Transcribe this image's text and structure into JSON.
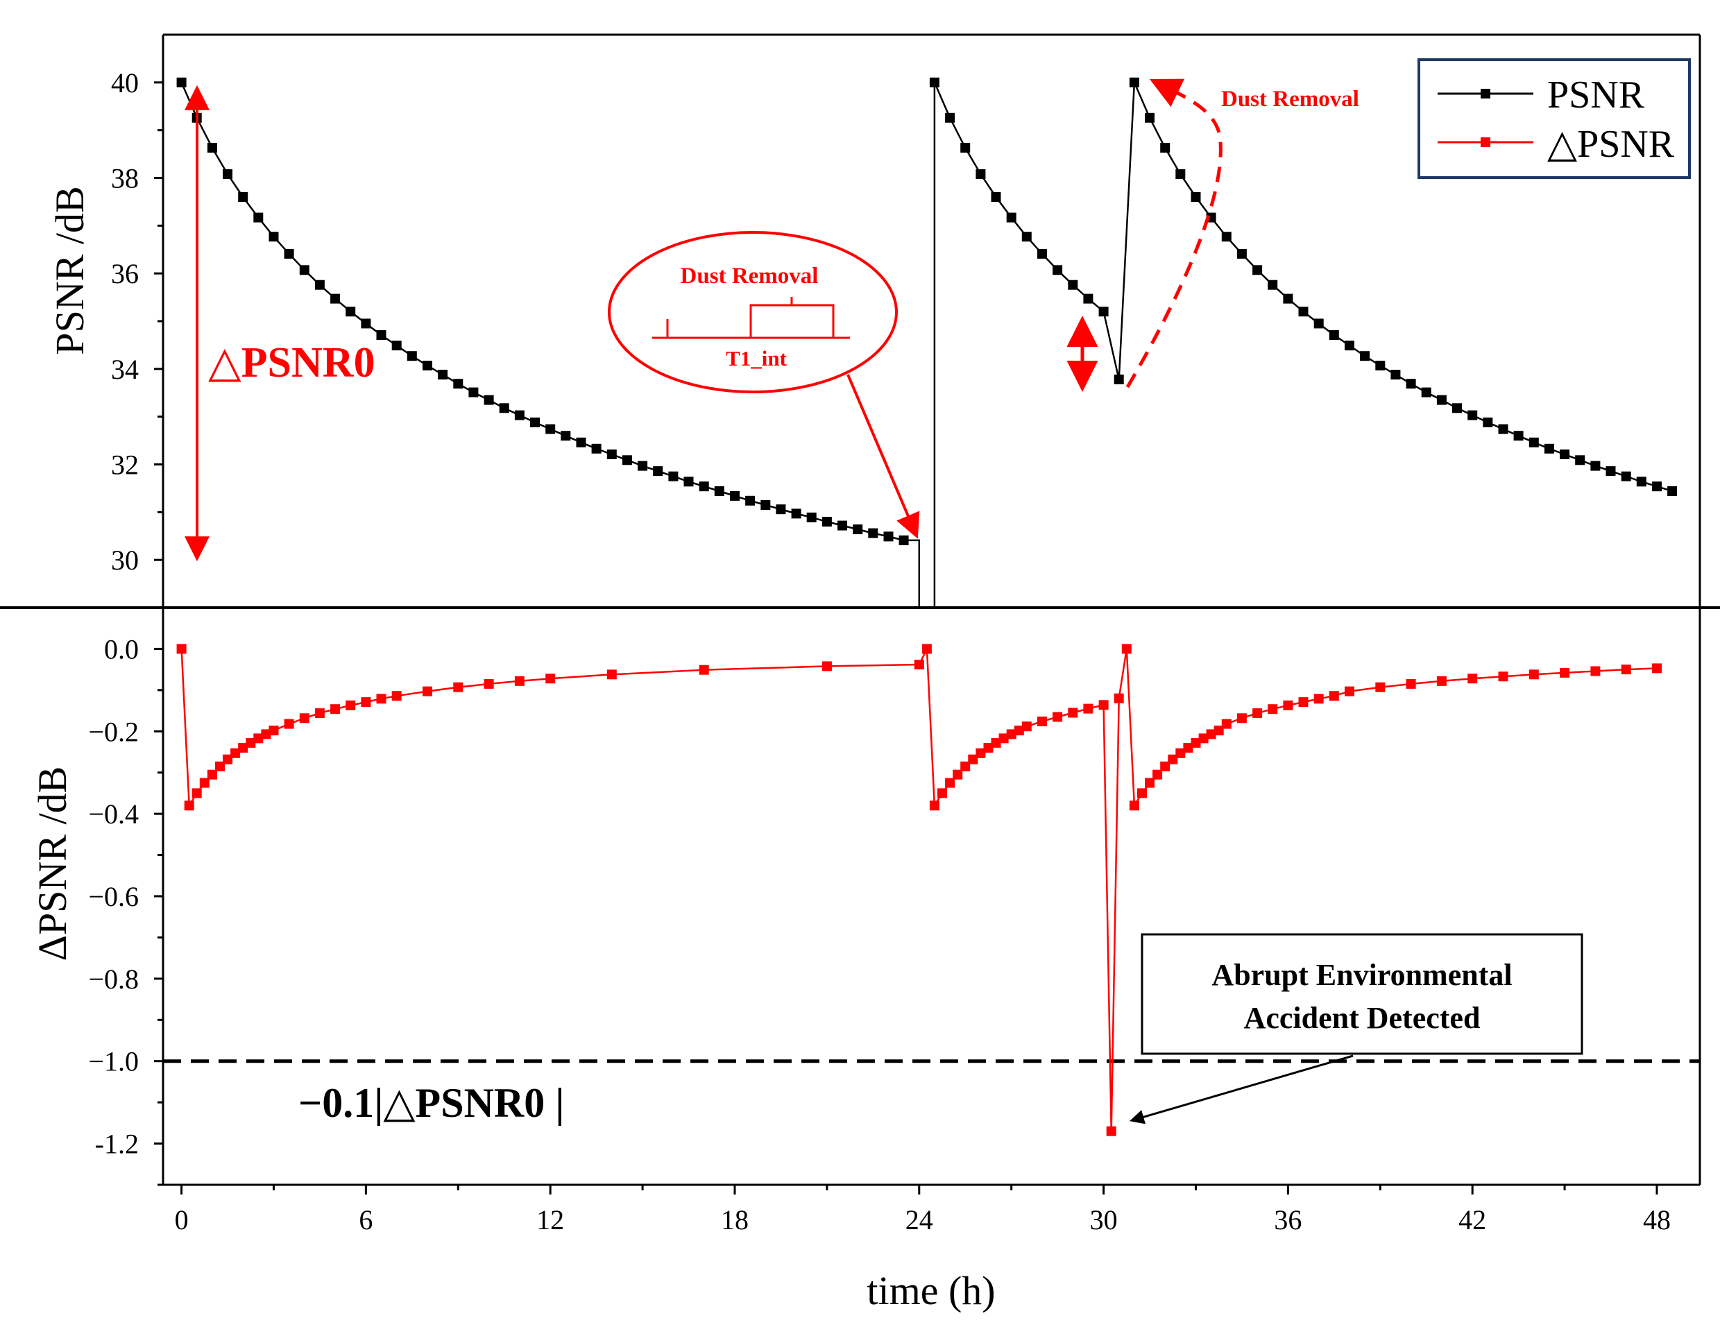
{
  "colors": {
    "psnr": "#000000",
    "dpsnr": "#ff0000",
    "annotation": "#ff0000",
    "legend_border": "#1f3864"
  },
  "chart_data": [
    {
      "type": "line",
      "panel": "top",
      "ylabel": "PSNR /dB",
      "ylim": [
        29,
        41
      ],
      "yticks": [
        30,
        32,
        34,
        36,
        38,
        40
      ],
      "ytick_labels": [
        "30",
        "32",
        "34",
        "36",
        "38",
        "40"
      ],
      "legend": [
        "PSNR",
        "△PSNR"
      ],
      "legend_position": "top-right",
      "series": [
        {
          "name": "PSNR",
          "x": [
            0,
            0.5,
            1,
            1.5,
            2,
            2.5,
            3,
            3.5,
            4,
            4.5,
            5,
            5.5,
            6,
            6.5,
            7,
            7.5,
            8,
            8.5,
            9,
            9.5,
            10,
            10.5,
            11,
            11.5,
            12,
            12.5,
            13,
            13.5,
            14,
            14.5,
            15,
            15.5,
            16,
            16.5,
            17,
            17.5,
            18,
            18.5,
            19,
            19.5,
            20,
            20.5,
            21,
            21.5,
            22,
            22.5,
            23,
            23.5,
            24.5,
            25,
            25.5,
            26,
            26.5,
            27,
            27.5,
            28,
            28.5,
            29,
            29.5,
            30,
            30.5,
            31,
            31.5,
            32,
            32.5,
            33,
            33.5,
            34,
            34.5,
            35,
            35.5,
            36,
            36.5,
            37,
            37.5,
            38,
            38.5,
            39,
            39.5,
            40,
            40.5,
            41,
            41.5,
            42,
            42.5,
            43,
            43.5,
            44,
            44.5,
            45,
            45.5,
            46,
            46.5,
            47,
            47.5,
            48,
            48.5
          ],
          "y": [
            40,
            39.26,
            38.63,
            38.08,
            37.6,
            37.17,
            36.77,
            36.41,
            36.07,
            35.76,
            35.47,
            35.2,
            34.95,
            34.71,
            34.49,
            34.27,
            34.07,
            33.88,
            33.69,
            33.51,
            33.35,
            33.18,
            33.03,
            32.88,
            32.74,
            32.6,
            32.46,
            32.33,
            32.21,
            32.09,
            31.97,
            31.86,
            31.75,
            31.64,
            31.54,
            31.44,
            31.34,
            31.24,
            31.15,
            31.06,
            30.97,
            30.89,
            30.8,
            30.72,
            30.64,
            30.56,
            30.49,
            30.41,
            40,
            39.26,
            38.63,
            38.08,
            37.6,
            37.17,
            36.77,
            36.41,
            36.07,
            35.76,
            35.47,
            35.2,
            33.78,
            40,
            39.26,
            38.63,
            38.08,
            37.6,
            37.17,
            36.77,
            36.41,
            36.07,
            35.76,
            35.47,
            35.2,
            34.95,
            34.71,
            34.49,
            34.27,
            34.07,
            33.88,
            33.69,
            33.51,
            33.35,
            33.18,
            33.03,
            32.88,
            32.74,
            32.6,
            32.46,
            32.33,
            32.21,
            32.09,
            31.97,
            31.86,
            31.75,
            31.64,
            31.54,
            31.44
          ]
        }
      ],
      "annotations": {
        "delta_label": "△PSNR0",
        "dust_removal_label": "Dust Removal",
        "inset_label_top": "Dust Removal",
        "inset_label_bottom": "T1_int"
      }
    },
    {
      "type": "line",
      "panel": "bottom",
      "ylabel": "ΔPSNR /dB",
      "xlabel": "time (h)",
      "ylim": [
        -1.3,
        0.1
      ],
      "xlim": [
        -0.6,
        49.4
      ],
      "yticks": [
        0,
        -0.2,
        -0.4,
        -0.6,
        -0.8,
        -1.0,
        -1.2
      ],
      "ytick_labels": [
        "0.0",
        "−0.2",
        "−0.4",
        "−0.6",
        "−0.8",
        "−1.0",
        "-1.2"
      ],
      "xticks": [
        0,
        6,
        12,
        18,
        24,
        30,
        36,
        42,
        48
      ],
      "xtick_labels": [
        "0",
        "6",
        "12",
        "18",
        "24",
        "30",
        "36",
        "42",
        "48"
      ],
      "threshold": -1.0,
      "series": [
        {
          "name": "△PSNR",
          "x": [
            0,
            0.25,
            0.5,
            0.75,
            1,
            1.25,
            1.5,
            1.75,
            2,
            2.25,
            2.5,
            2.75,
            3,
            3.5,
            4,
            4.5,
            5,
            5.5,
            6,
            6.5,
            7,
            8,
            9,
            10,
            11,
            12,
            14,
            17,
            21,
            24,
            24.25,
            24.5,
            24.75,
            25,
            25.25,
            25.5,
            25.75,
            26,
            26.25,
            26.5,
            26.75,
            27,
            27.25,
            27.5,
            28,
            28.5,
            29,
            29.5,
            30,
            30.25,
            30.5,
            30.75,
            31,
            31.25,
            31.5,
            31.75,
            32,
            32.25,
            32.5,
            32.75,
            33,
            33.25,
            33.5,
            33.75,
            34,
            34.5,
            35,
            35.5,
            36,
            36.5,
            37,
            37.5,
            38,
            39,
            40,
            41,
            42,
            43,
            44,
            45,
            46,
            47,
            48
          ],
          "y": [
            0,
            -0.38,
            -0.35,
            -0.325,
            -0.305,
            -0.285,
            -0.268,
            -0.253,
            -0.24,
            -0.228,
            -0.217,
            -0.207,
            -0.198,
            -0.182,
            -0.168,
            -0.156,
            -0.146,
            -0.137,
            -0.129,
            -0.121,
            -0.114,
            -0.103,
            -0.093,
            -0.085,
            -0.078,
            -0.072,
            -0.062,
            -0.051,
            -0.042,
            -0.038,
            0,
            -0.38,
            -0.35,
            -0.325,
            -0.305,
            -0.285,
            -0.268,
            -0.253,
            -0.24,
            -0.228,
            -0.217,
            -0.207,
            -0.198,
            -0.188,
            -0.176,
            -0.165,
            -0.155,
            -0.145,
            -0.136,
            -1.17,
            -0.12,
            0,
            -0.38,
            -0.35,
            -0.325,
            -0.305,
            -0.285,
            -0.268,
            -0.253,
            -0.24,
            -0.228,
            -0.217,
            -0.207,
            -0.198,
            -0.182,
            -0.168,
            -0.156,
            -0.146,
            -0.137,
            -0.129,
            -0.121,
            -0.114,
            -0.103,
            -0.093,
            -0.085,
            -0.078,
            -0.072,
            -0.067,
            -0.062,
            -0.058,
            -0.054,
            -0.05,
            -0.047
          ],
          "x_plot_override": null
        }
      ],
      "annotations": {
        "threshold_label": "−0.1|△PSNR0 |",
        "box_line1": "Abrupt Environmental",
        "box_line2": "Accident  Detected"
      }
    }
  ]
}
